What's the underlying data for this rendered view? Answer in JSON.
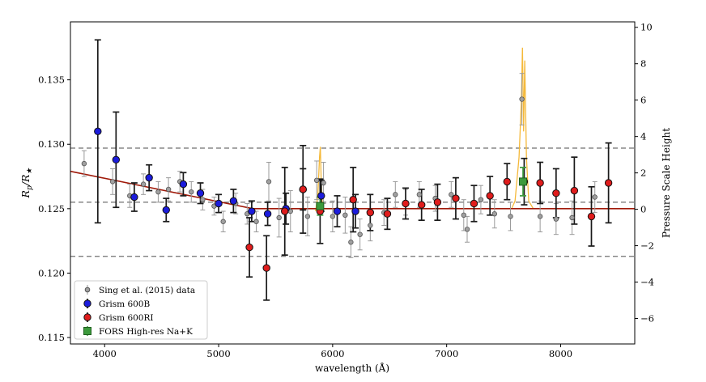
{
  "chart_data": {
    "type": "scatter",
    "xlabel": "wavelength (Å)",
    "ylabel": "Rp/R★",
    "ylabel_parts": {
      "base": "R",
      "sub1": "p",
      "slash": "/R",
      "sub2": "★"
    },
    "y2label": "Pressure Scale Height",
    "xlim": [
      3700,
      8650
    ],
    "ylim": [
      0.1145,
      0.1395
    ],
    "y2lim": [
      -7.4,
      10.3
    ],
    "xticks": [
      4000,
      5000,
      6000,
      7000,
      8000
    ],
    "yticks": [
      0.115,
      0.12,
      0.125,
      0.13,
      0.135
    ],
    "y2ticks": [
      -6,
      -4,
      -2,
      0,
      2,
      4,
      6,
      8,
      10
    ],
    "hlines": [
      0.1297,
      0.1255,
      0.1213
    ],
    "model_line": [
      [
        3700,
        0.1279
      ],
      [
        5300,
        0.125
      ],
      [
        8650,
        0.125
      ]
    ],
    "fors_curve": [
      [
        5850,
        0.1248
      ],
      [
        5870,
        0.126
      ],
      [
        5885,
        0.129
      ],
      [
        5892,
        0.1298
      ],
      [
        5900,
        0.127
      ],
      [
        5910,
        0.1252
      ],
      [
        7570,
        0.125
      ],
      [
        7600,
        0.1256
      ],
      [
        7635,
        0.129
      ],
      [
        7655,
        0.1332
      ],
      [
        7665,
        0.1375
      ],
      [
        7675,
        0.131
      ],
      [
        7685,
        0.1365
      ],
      [
        7700,
        0.129
      ],
      [
        7720,
        0.1256
      ],
      [
        7760,
        0.125
      ]
    ],
    "series": [
      {
        "name": "Sing et al. (2015) data",
        "color": "#a0a0a0",
        "size": "small",
        "points": [
          [
            3820,
            0.1285,
            0.001
          ],
          [
            4070,
            0.1271,
            0.001
          ],
          [
            4220,
            0.126,
            0.0009
          ],
          [
            4340,
            0.1269,
            0.0008
          ],
          [
            4470,
            0.1263,
            0.0008
          ],
          [
            4560,
            0.1265,
            0.0009
          ],
          [
            4660,
            0.1271,
            0.0008
          ],
          [
            4760,
            0.1263,
            0.0008
          ],
          [
            4860,
            0.1257,
            0.0008
          ],
          [
            4960,
            0.1252,
            0.0007
          ],
          [
            5040,
            0.124,
            0.0008
          ],
          [
            5150,
            0.1254,
            0.0008
          ],
          [
            5250,
            0.1246,
            0.0008
          ],
          [
            5330,
            0.124,
            0.0008
          ],
          [
            5440,
            0.1271,
            0.0015
          ],
          [
            5530,
            0.1243,
            0.0015
          ],
          [
            5630,
            0.1248,
            0.0016
          ],
          [
            5780,
            0.1244,
            0.0015
          ],
          [
            5860,
            0.1272,
            0.0015
          ],
          [
            5920,
            0.127,
            0.0016
          ],
          [
            6000,
            0.1244,
            0.0012
          ],
          [
            6110,
            0.1245,
            0.0014
          ],
          [
            6160,
            0.1224,
            0.0012
          ],
          [
            6240,
            0.123,
            0.0012
          ],
          [
            6330,
            0.1237,
            0.0012
          ],
          [
            6450,
            0.1247,
            0.001
          ],
          [
            6550,
            0.1261,
            0.001
          ],
          [
            6640,
            0.1255,
            0.001
          ],
          [
            6760,
            0.1261,
            0.001
          ],
          [
            6900,
            0.1258,
            0.001
          ],
          [
            7040,
            0.1261,
            0.001
          ],
          [
            7150,
            0.1245,
            0.0012
          ],
          [
            7180,
            0.1234,
            0.001
          ],
          [
            7300,
            0.1257,
            0.0011
          ],
          [
            7420,
            0.1246,
            0.0011
          ],
          [
            7560,
            0.1244,
            0.0011
          ],
          [
            7660,
            0.1335,
            0.002
          ],
          [
            7820,
            0.1244,
            0.0012
          ],
          [
            7960,
            0.1242,
            0.0012
          ],
          [
            8100,
            0.1243,
            0.0013
          ],
          [
            8300,
            0.1259,
            0.0012
          ]
        ]
      },
      {
        "name": "Grism 600B",
        "color": "#1c1cdc",
        "size": "large",
        "points": [
          [
            3940,
            0.131,
            0.0071
          ],
          [
            4100,
            0.1288,
            0.0037
          ],
          [
            4260,
            0.1259,
            0.0011
          ],
          [
            4390,
            0.1274,
            0.001
          ],
          [
            4540,
            0.1249,
            0.0009
          ],
          [
            4690,
            0.1269,
            0.0009
          ],
          [
            4840,
            0.1262,
            0.0008
          ],
          [
            5000,
            0.1254,
            0.0007
          ],
          [
            5130,
            0.1256,
            0.0009
          ],
          [
            5290,
            0.1248,
            0.0008
          ],
          [
            5430,
            0.1246,
            0.0009
          ],
          [
            5590,
            0.125,
            0.0012
          ],
          [
            5740,
            0.1265,
            0.0016
          ],
          [
            5900,
            0.126,
            0.0012
          ],
          [
            6040,
            0.1248,
            0.0012
          ],
          [
            6200,
            0.1248,
            0.0013
          ]
        ]
      },
      {
        "name": "Grism 600RI",
        "color": "#e01c1c",
        "size": "large",
        "points": [
          [
            5270,
            0.122,
            0.0023
          ],
          [
            5420,
            0.1204,
            0.0025
          ],
          [
            5580,
            0.1248,
            0.0034
          ],
          [
            5740,
            0.1265,
            0.0034
          ],
          [
            5890,
            0.1248,
            0.0025
          ],
          [
            6180,
            0.1257,
            0.0025
          ],
          [
            6330,
            0.1247,
            0.0014
          ],
          [
            6480,
            0.1246,
            0.0012
          ],
          [
            6640,
            0.1254,
            0.0012
          ],
          [
            6780,
            0.1253,
            0.0012
          ],
          [
            6920,
            0.1255,
            0.0014
          ],
          [
            7080,
            0.1258,
            0.0016
          ],
          [
            7240,
            0.1254,
            0.0014
          ],
          [
            7380,
            0.126,
            0.0015
          ],
          [
            7530,
            0.1271,
            0.0014
          ],
          [
            7680,
            0.1271,
            0.0018
          ],
          [
            7820,
            0.127,
            0.0016
          ],
          [
            7960,
            0.1262,
            0.0019
          ],
          [
            8120,
            0.1264,
            0.0026
          ],
          [
            8270,
            0.1244,
            0.0023
          ],
          [
            8420,
            0.127,
            0.0031
          ]
        ]
      },
      {
        "name": "FORS High-res Na+K",
        "color": "#3c9a3c",
        "size": "square",
        "points": [
          [
            5890,
            0.1252,
            0.0007
          ],
          [
            7670,
            0.1271,
            0.0011
          ]
        ]
      }
    ]
  }
}
